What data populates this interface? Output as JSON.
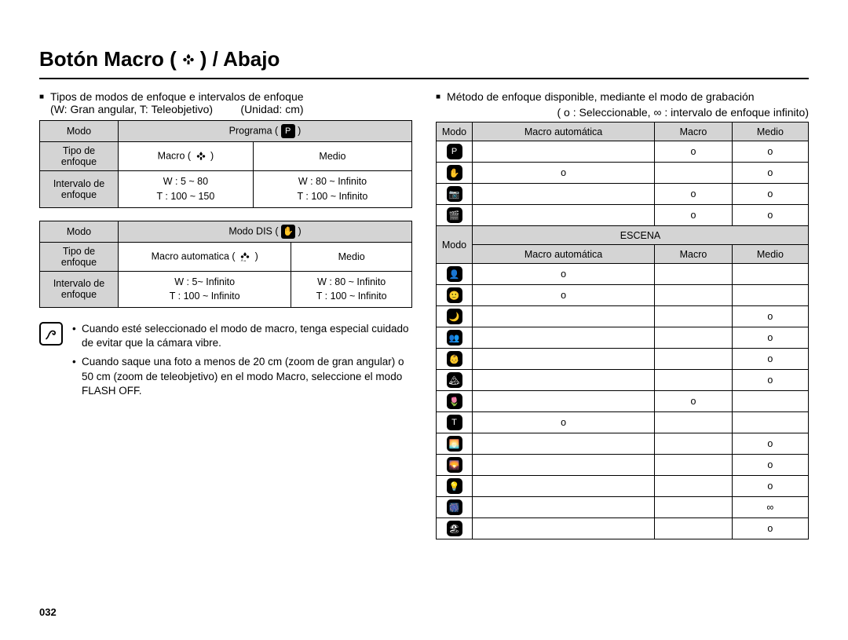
{
  "title_prefix": "Botón Macro (",
  "title_suffix": ") / Abajo",
  "left": {
    "heading": "Tipos de modos de enfoque e intervalos de enfoque",
    "heading2": "(W: Gran angular, T: Teleobjetivo)",
    "unit": "(Unidad: cm)",
    "table1": {
      "modo_label": "Modo",
      "mode_name_pre": "Programa (",
      "mode_name_post": ")",
      "tipo_label": "Tipo de enfoque",
      "col1": "Macro (",
      "col1_post": ")",
      "col2": "Medio",
      "intervalo_label": "Intervalo de enfoque",
      "r1a": "W : 5 ~ 80",
      "r1b": "T : 100 ~ 150",
      "r2a": "W : 80 ~ Infinito",
      "r2b": "T : 100 ~ Infinito"
    },
    "table2": {
      "modo_label": "Modo",
      "mode_name_pre": "Modo DIS (",
      "mode_name_post": ")",
      "tipo_label": "Tipo de enfoque",
      "col1": "Macro automatica (",
      "col1_post": ")",
      "col2": "Medio",
      "intervalo_label": "Intervalo de enfoque",
      "r1a": "W : 5~ Infinito",
      "r1b": "T : 100 ~ Infinito",
      "r2a": "W : 80 ~ Infinito",
      "r2b": "T : 100 ~ Infinito"
    },
    "notes": [
      "Cuando esté seleccionado el modo de macro, tenga especial cuidado de evitar que la cámara vibre.",
      "Cuando saque una foto a menos de 20 cm (zoom de gran angular) o 50 cm (zoom de teleobjetivo) en el modo Macro, seleccione el modo FLASH OFF."
    ]
  },
  "right": {
    "heading": "Método de enfoque disponible, mediante el modo de grabación",
    "legend": "( o : Seleccionable, ∞ : intervalo de enfoque infinito)",
    "headers": {
      "modo": "Modo",
      "auto": "Macro automática",
      "macro": "Macro",
      "medio": "Medio"
    },
    "escena": "ESCENA",
    "top_rows": [
      {
        "icon": "P",
        "auto": "",
        "macro": "o",
        "medio": "o"
      },
      {
        "icon": "✋",
        "auto": "o",
        "macro": "",
        "medio": "o"
      },
      {
        "icon": "📷",
        "auto": "",
        "macro": "o",
        "medio": "o"
      },
      {
        "icon": "🎬",
        "auto": "",
        "macro": "o",
        "medio": "o"
      }
    ],
    "scene_rows": [
      {
        "icon": "👤",
        "auto": "o",
        "macro": "",
        "medio": ""
      },
      {
        "icon": "🙂",
        "auto": "o",
        "macro": "",
        "medio": ""
      },
      {
        "icon": "🌙",
        "auto": "",
        "macro": "",
        "medio": "o"
      },
      {
        "icon": "👥",
        "auto": "",
        "macro": "",
        "medio": "o"
      },
      {
        "icon": "👶",
        "auto": "",
        "macro": "",
        "medio": "o"
      },
      {
        "icon": "🏔",
        "auto": "",
        "macro": "",
        "medio": "o"
      },
      {
        "icon": "🌷",
        "auto": "",
        "macro": "o",
        "medio": ""
      },
      {
        "icon": "T",
        "auto": "o",
        "macro": "",
        "medio": ""
      },
      {
        "icon": "🌅",
        "auto": "",
        "macro": "",
        "medio": "o"
      },
      {
        "icon": "🌄",
        "auto": "",
        "macro": "",
        "medio": "o"
      },
      {
        "icon": "💡",
        "auto": "",
        "macro": "",
        "medio": "o"
      },
      {
        "icon": "🎆",
        "auto": "",
        "macro": "",
        "medio": "∞"
      },
      {
        "icon": "🏖",
        "auto": "",
        "macro": "",
        "medio": "o"
      }
    ]
  },
  "page": "032",
  "colors": {
    "header_bg": "#d4d4d4",
    "text": "#000000",
    "bg": "#ffffff"
  }
}
